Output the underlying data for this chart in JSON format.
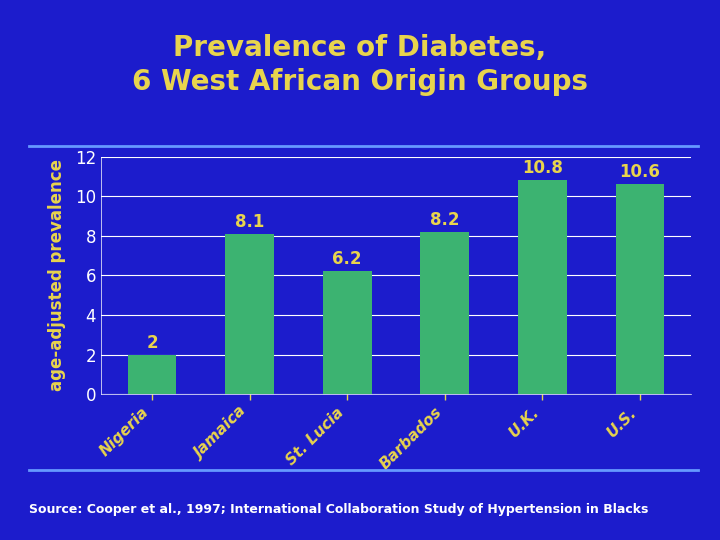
{
  "title": "Prevalence of Diabetes,\n6 West African Origin Groups",
  "ylabel": "age-adjusted prevalence",
  "categories": [
    "Nigeria",
    "Jamaica",
    "St. Lucia",
    "Barbados",
    "U.K.",
    "U.S."
  ],
  "values": [
    2.0,
    8.1,
    6.2,
    8.2,
    10.8,
    10.6
  ],
  "bar_color": "#3cb371",
  "background_color": "#1c1ccc",
  "plot_bg_color": "#1c1ccc",
  "title_color": "#e8d44d",
  "ylabel_color": "#e8d44d",
  "ytick_color": "#ffffff",
  "xtick_color": "#e8d44d",
  "bar_label_color": "#e8d44d",
  "source_text": "Source: Cooper et al., 1997; International Collaboration Study of Hypertension in Blacks",
  "source_color": "#ffffff",
  "ylim": [
    0,
    12
  ],
  "yticks": [
    0,
    2,
    4,
    6,
    8,
    10,
    12
  ],
  "grid_color": "#ffffff",
  "title_fontsize": 20,
  "ylabel_fontsize": 12,
  "ytick_fontsize": 12,
  "xtick_fontsize": 11,
  "bar_label_fontsize": 12,
  "source_fontsize": 9,
  "figsize": [
    7.2,
    5.4
  ],
  "dpi": 100
}
